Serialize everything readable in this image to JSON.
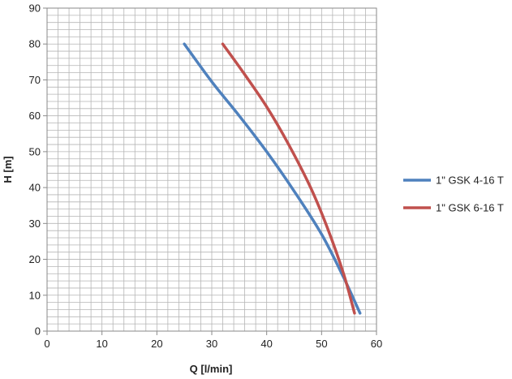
{
  "chart_data": {
    "type": "line",
    "xlabel": "Q [l/min]",
    "ylabel": "H [m]",
    "xlim": [
      0,
      60
    ],
    "ylim": [
      0,
      90
    ],
    "x_ticks": [
      "0",
      "10",
      "20",
      "30",
      "40",
      "50",
      "60"
    ],
    "y_ticks": [
      "0",
      "10",
      "20",
      "30",
      "40",
      "50",
      "60",
      "70",
      "80",
      "90"
    ],
    "grid": true,
    "legend_position": "right",
    "series": [
      {
        "name": "1\" GSK 4-16 T",
        "color": "#4F81BD",
        "x": [
          25,
          30,
          35,
          40,
          45,
          50,
          54,
          57
        ],
        "y": [
          80,
          69.5,
          60,
          50,
          39,
          27,
          15,
          5
        ]
      },
      {
        "name": "1\" GSK 6-16 T",
        "color": "#C0504D",
        "x": [
          32,
          36,
          40,
          44,
          48,
          51,
          54,
          56
        ],
        "y": [
          80,
          71.5,
          62.5,
          52,
          40,
          29,
          16,
          5
        ]
      }
    ]
  }
}
